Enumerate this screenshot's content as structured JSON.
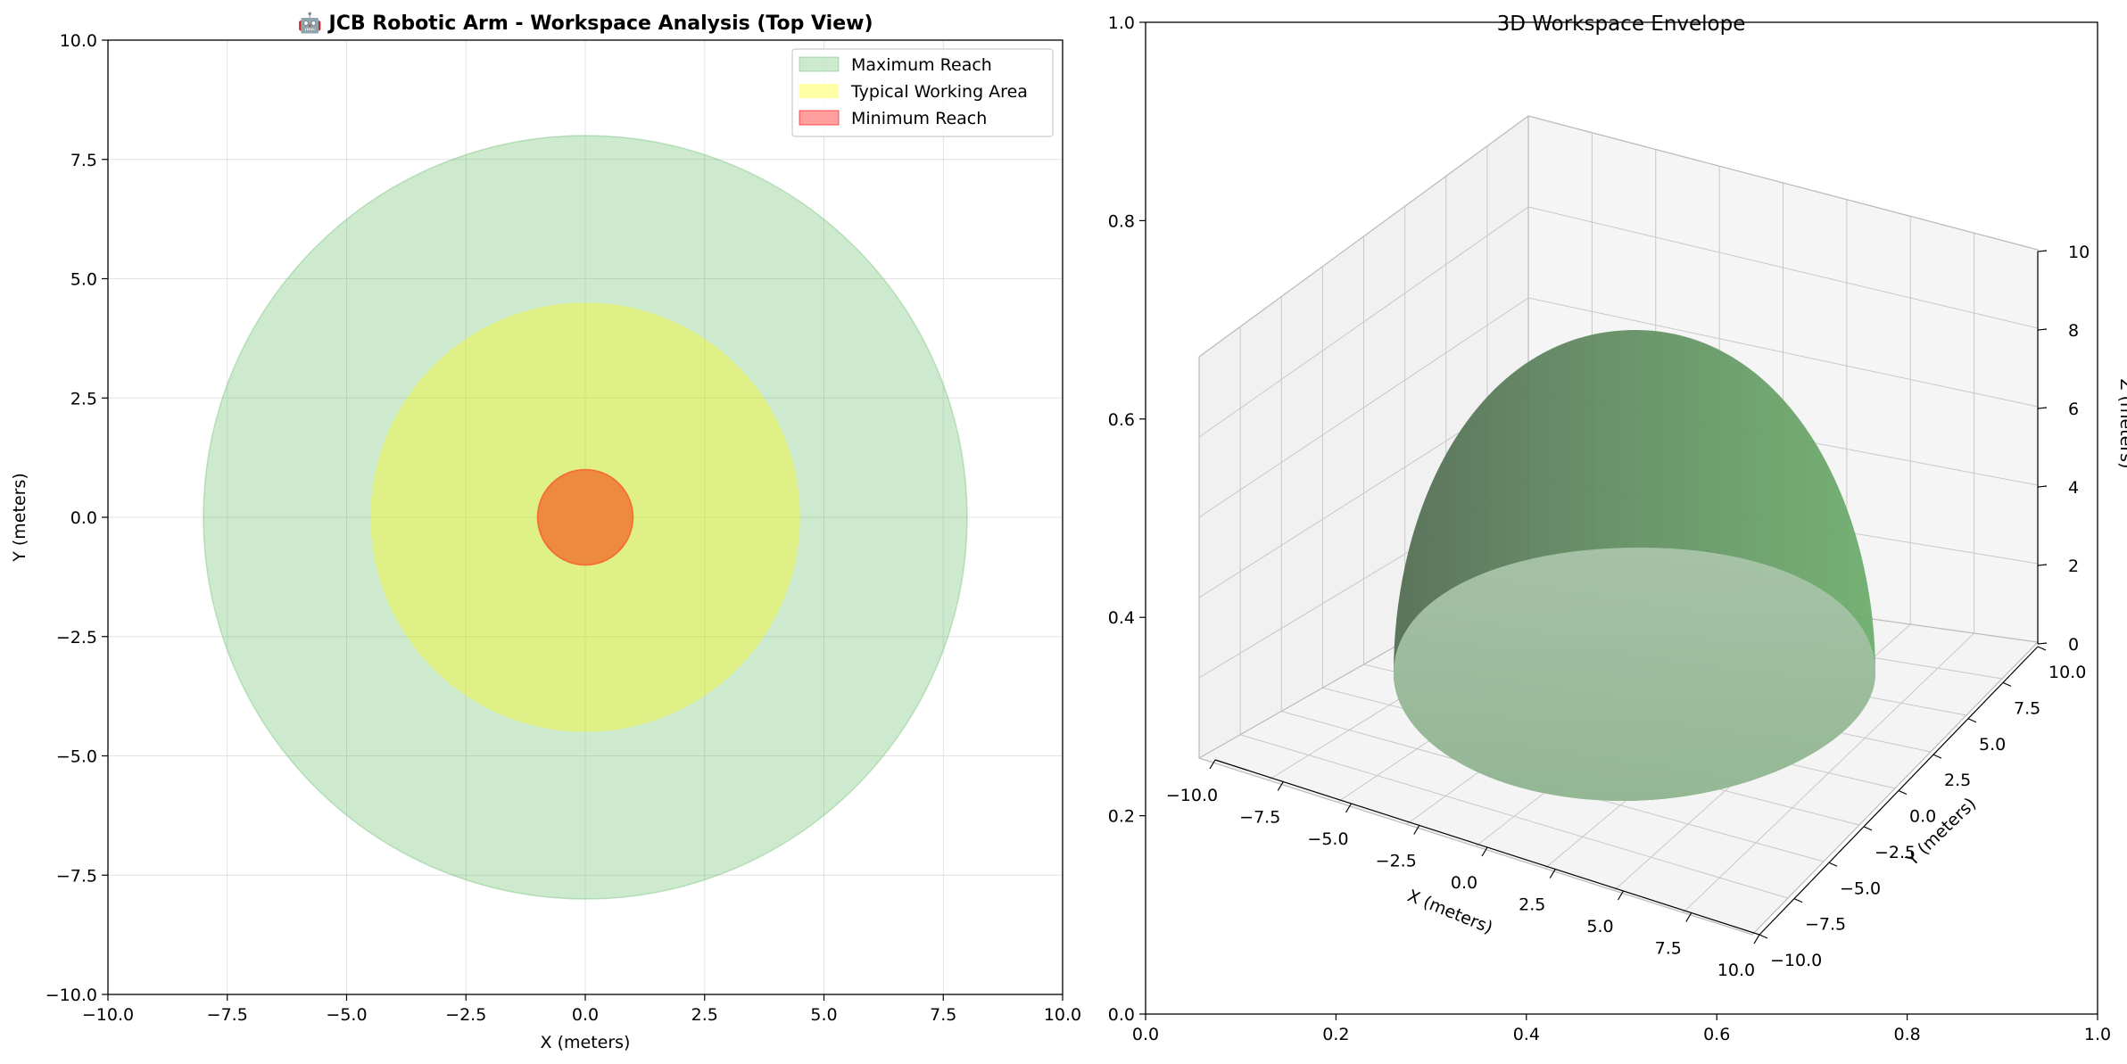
{
  "chart_data": [
    {
      "type": "area",
      "title": "🤖 JCB Robotic Arm - Workspace Analysis (Top View)",
      "xlabel": "X (meters)",
      "ylabel": "Y (meters)",
      "xlim": [
        -10,
        10
      ],
      "ylim": [
        -10,
        10
      ],
      "xticks": [
        "−10.0",
        "−7.5",
        "−5.0",
        "−2.5",
        "0.0",
        "2.5",
        "5.0",
        "7.5",
        "10.0"
      ],
      "yticks": [
        "−10.0",
        "−7.5",
        "−5.0",
        "−2.5",
        "0.0",
        "2.5",
        "5.0",
        "7.5",
        "10.0"
      ],
      "grid": true,
      "legend": "top-right",
      "series": [
        {
          "name": "Maximum Reach",
          "shape": "circle",
          "center": [
            0,
            0
          ],
          "radius": 8.0,
          "color": "#4caf50"
        },
        {
          "name": "Typical Working Area",
          "shape": "circle",
          "center": [
            0,
            0
          ],
          "radius": 4.5,
          "color": "#ffff00"
        },
        {
          "name": "Minimum Reach",
          "shape": "circle",
          "center": [
            0,
            0
          ],
          "radius": 1.0,
          "color": "#ff0000"
        }
      ]
    },
    {
      "type": "surface3d",
      "title": "3D Workspace Envelope",
      "xlabel": "X (meters)",
      "ylabel": "Y (meters)",
      "zlabel": "Z (meters)",
      "xlim": [
        -10,
        10
      ],
      "ylim": [
        -10,
        10
      ],
      "zlim": [
        0,
        10
      ],
      "xticks": [
        "−10.0",
        "−7.5",
        "−5.0",
        "−2.5",
        "0.0",
        "2.5",
        "5.0",
        "7.5",
        "10.0"
      ],
      "yticks": [
        "−10.0",
        "−7.5",
        "−5.0",
        "−2.5",
        "0.0",
        "2.5",
        "5.0",
        "7.5",
        "10.0"
      ],
      "zticks": [
        "0",
        "2",
        "4",
        "6",
        "8",
        "10"
      ],
      "frame_xticks": [
        "0.0",
        "0.2",
        "0.4",
        "0.6",
        "0.8",
        "1.0"
      ],
      "frame_yticks": [
        "0.0",
        "0.2",
        "0.4",
        "0.6",
        "0.8",
        "1.0"
      ],
      "surface": {
        "shape": "hemisphere",
        "radius": 8.0,
        "color": "#4caf50"
      }
    }
  ]
}
